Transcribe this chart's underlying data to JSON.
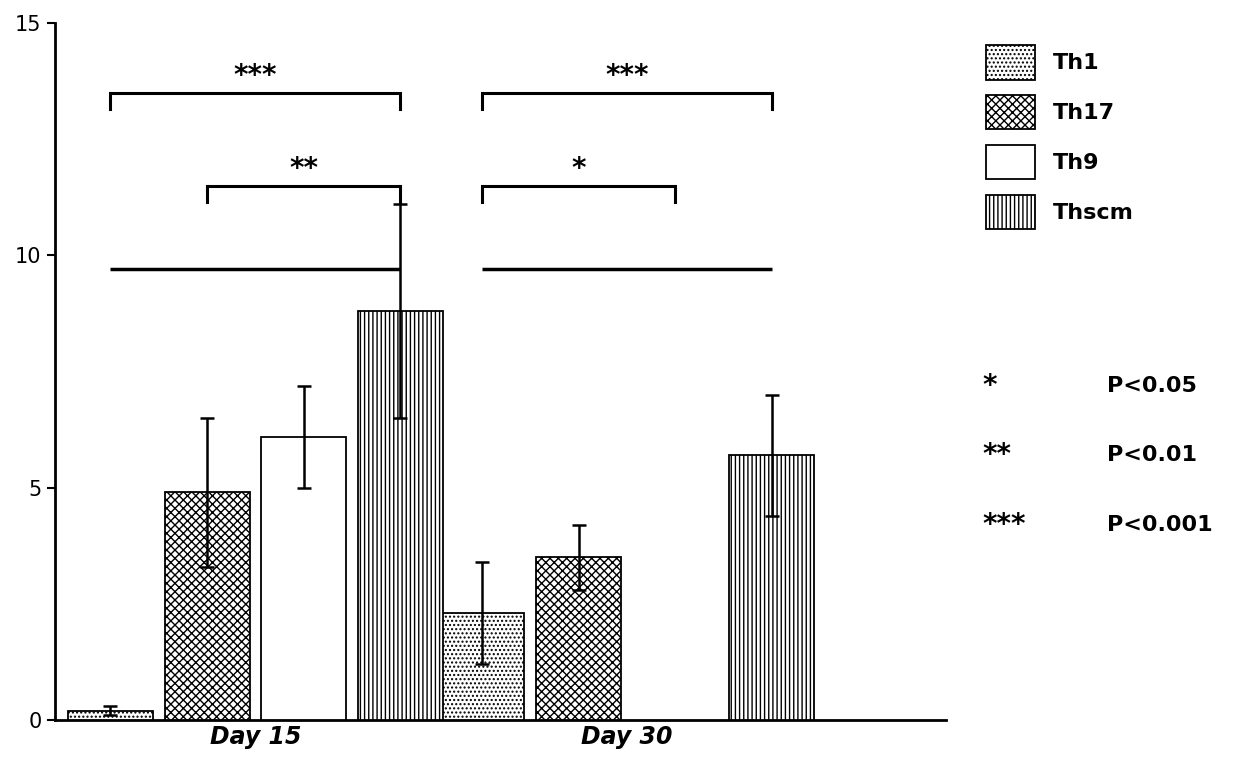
{
  "groups": [
    "Day 15",
    "Day 30"
  ],
  "series": [
    "Th1",
    "Th17",
    "Th9",
    "Thscm"
  ],
  "values": {
    "Day 15": [
      0.2,
      4.9,
      6.1,
      8.8
    ],
    "Day 30": [
      2.3,
      3.5,
      0.0,
      5.7
    ]
  },
  "errors": {
    "Day 15": [
      0.1,
      1.6,
      1.1,
      2.3
    ],
    "Day 30": [
      1.1,
      0.7,
      0.0,
      1.3
    ]
  },
  "ylim": [
    0,
    15
  ],
  "yticks": [
    0,
    5,
    10,
    15
  ],
  "bar_width": 0.13,
  "group_centers": [
    0.32,
    0.82
  ],
  "xlim": [
    0.05,
    1.25
  ],
  "background_color": "#ffffff",
  "hatch_patterns": [
    "....",
    "xxxx",
    "====",
    "||||"
  ],
  "legend_labels": [
    "Th1",
    "Th17",
    "Th9",
    "Thscm"
  ],
  "fontsize_ticks": 15,
  "fontsize_xlabels": 17,
  "fontsize_sig": 20,
  "fontsize_legend": 16,
  "fontsize_ptext": 16
}
